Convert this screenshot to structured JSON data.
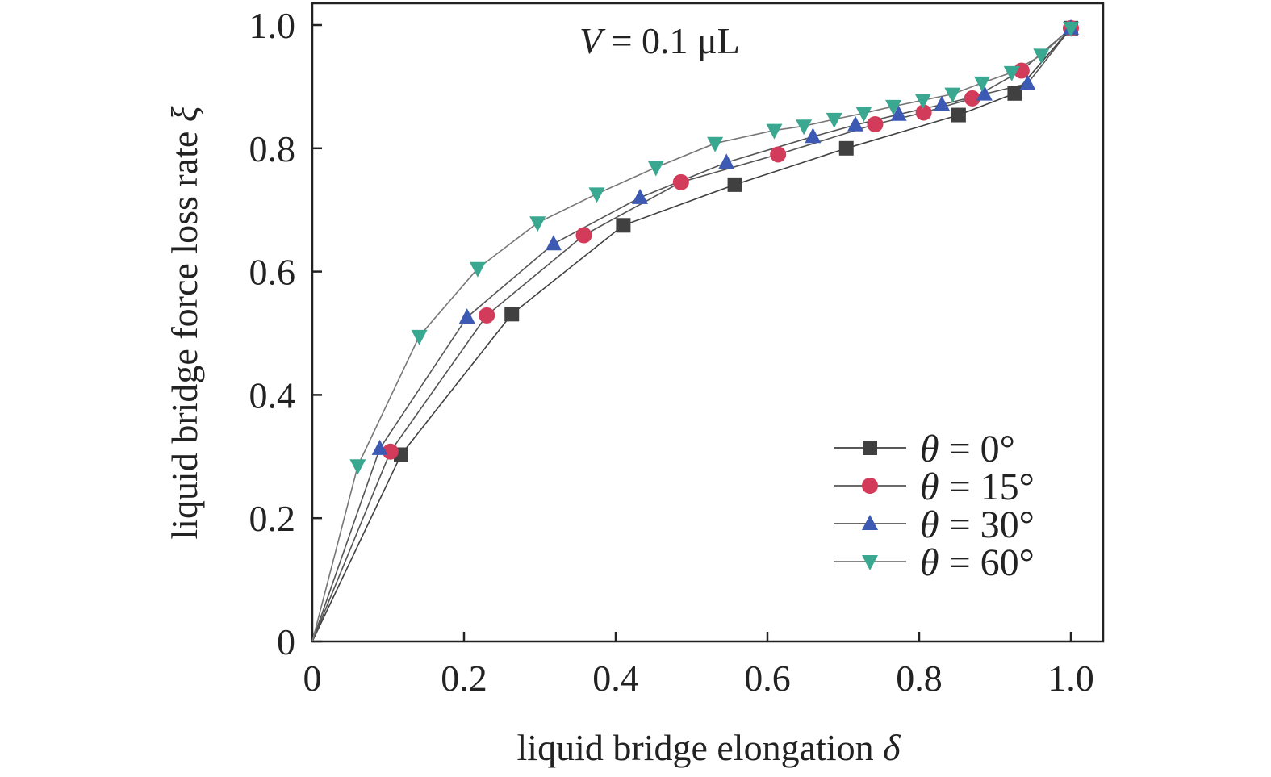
{
  "chart_data": {
    "type": "line",
    "title": "",
    "annotation": {
      "prefix": "V",
      "text": " = 0.1 μL"
    },
    "xlabel": {
      "text": "liquid bridge elongation ",
      "symbol": "δ"
    },
    "ylabel": {
      "text": "liquid bridge force loss rate ",
      "symbol": "ξ"
    },
    "xlim": [
      0,
      1.0
    ],
    "ylim": [
      0,
      1.0
    ],
    "xticks": [
      0,
      0.2,
      0.4,
      0.6,
      0.8,
      1.0
    ],
    "xtick_labels": [
      "0",
      "0.2",
      "0.4",
      "0.6",
      "0.8",
      "1.0"
    ],
    "yticks": [
      0,
      0.2,
      0.4,
      0.6,
      0.8,
      1.0
    ],
    "ytick_labels": [
      "0",
      "0.2",
      "0.4",
      "0.6",
      "0.8",
      "1.0"
    ],
    "grid": false,
    "legend_position": "bottom-right",
    "series": [
      {
        "name": "θ = 0°",
        "symbol": "θ",
        "rest": " = 0°",
        "marker": "square",
        "color": "#404040",
        "line_color": "#404040",
        "x": [
          0,
          0.117,
          0.263,
          0.41,
          0.557,
          0.704,
          0.852,
          0.926,
          1.0
        ],
        "y": [
          0,
          0.303,
          0.531,
          0.675,
          0.741,
          0.8,
          0.854,
          0.889,
          0.995
        ]
      },
      {
        "name": "θ = 15°",
        "symbol": "θ",
        "rest": " = 15°",
        "marker": "circle",
        "color": "#d23c5a",
        "line_color": "#555555",
        "x": [
          0,
          0.103,
          0.23,
          0.358,
          0.486,
          0.614,
          0.742,
          0.806,
          0.87,
          0.935,
          1.0
        ],
        "y": [
          0,
          0.308,
          0.529,
          0.659,
          0.745,
          0.79,
          0.839,
          0.858,
          0.881,
          0.926,
          0.995
        ]
      },
      {
        "name": "θ = 30°",
        "symbol": "θ",
        "rest": " = 30°",
        "marker": "triangle-up",
        "color": "#3c5ab4",
        "line_color": "#555555",
        "x": [
          0,
          0.089,
          0.204,
          0.318,
          0.432,
          0.546,
          0.66,
          0.716,
          0.773,
          0.83,
          0.886,
          0.943,
          1.0
        ],
        "y": [
          0,
          0.313,
          0.526,
          0.645,
          0.72,
          0.777,
          0.819,
          0.838,
          0.855,
          0.871,
          0.888,
          0.905,
          0.995
        ]
      },
      {
        "name": "θ = 60°",
        "symbol": "θ",
        "rest": " = 60°",
        "marker": "triangle-down",
        "color": "#3aa891",
        "line_color": "#777777",
        "x": [
          0,
          0.06,
          0.141,
          0.218,
          0.297,
          0.375,
          0.453,
          0.531,
          0.609,
          0.648,
          0.688,
          0.727,
          0.766,
          0.805,
          0.844,
          0.883,
          0.922,
          0.961,
          1.0
        ],
        "y": [
          0,
          0.285,
          0.495,
          0.605,
          0.679,
          0.726,
          0.769,
          0.808,
          0.829,
          0.836,
          0.847,
          0.857,
          0.868,
          0.878,
          0.888,
          0.906,
          0.923,
          0.951,
          0.995
        ]
      }
    ]
  }
}
